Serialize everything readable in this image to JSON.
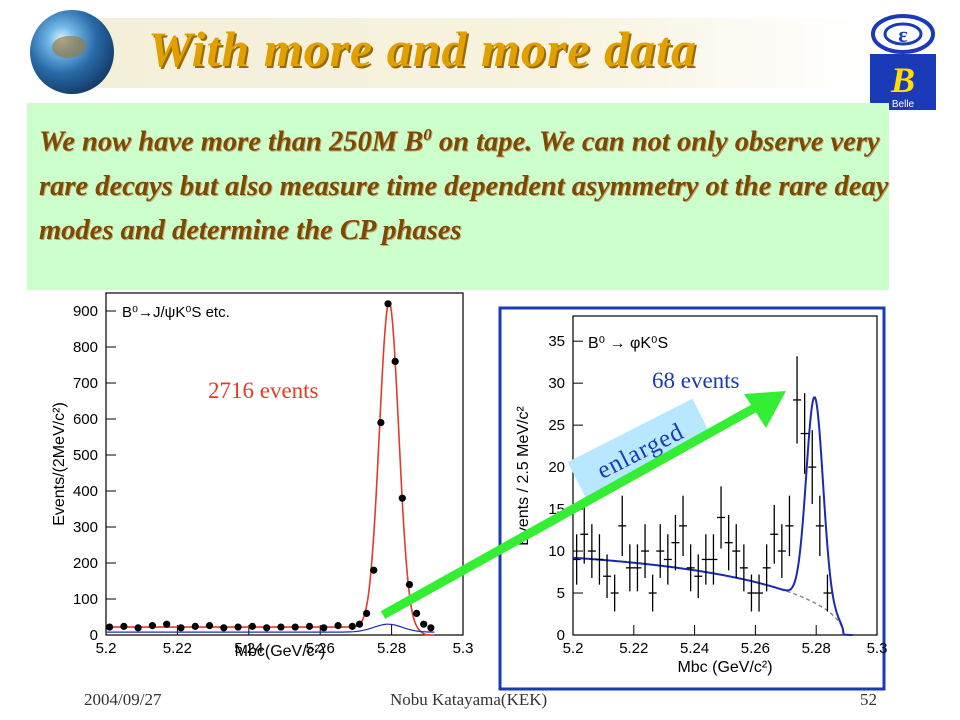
{
  "slide": {
    "title": "With more and more data",
    "body_pre": "We now have more than 250M B",
    "body_sup": "0",
    "body_post": " on tape. We can not only observe very rare decays but also measure time dependent asymmetry ot the rare deay modes and determine the CP phases",
    "logo_text": "Belle",
    "footer_date": "2004/09/27",
    "footer_author": "Nobu Katayama(KEK)",
    "footer_page": "52",
    "annotation_enlarged": "enlarged",
    "colors": {
      "title": "#e0a000",
      "textbox_bg": "#ccffcc",
      "arrow": "#33ee33",
      "left_count": "#e53a2a",
      "right_count": "#1a3ab8"
    }
  },
  "chart_data": [
    {
      "type": "scatter",
      "process_label": "B⁰→J/ψK⁰S etc.",
      "count_label": "2716 events",
      "xlabel": "Mbc(GeV/c²)",
      "ylabel": "Events/(2MeV/c²)",
      "xlim": [
        5.2,
        5.3
      ],
      "ylim": [
        0,
        950
      ],
      "xticks": [
        "5.2",
        "5.22",
        "5.24",
        "5.26",
        "5.28",
        "5.3"
      ],
      "yticks": [
        "0",
        "100",
        "200",
        "300",
        "400",
        "500",
        "600",
        "700",
        "800",
        "900"
      ],
      "points": [
        [
          5.201,
          22
        ],
        [
          5.205,
          24
        ],
        [
          5.209,
          20
        ],
        [
          5.213,
          26
        ],
        [
          5.217,
          30
        ],
        [
          5.221,
          20
        ],
        [
          5.225,
          24
        ],
        [
          5.229,
          26
        ],
        [
          5.233,
          20
        ],
        [
          5.237,
          22
        ],
        [
          5.241,
          24
        ],
        [
          5.245,
          20
        ],
        [
          5.249,
          22
        ],
        [
          5.253,
          22
        ],
        [
          5.257,
          24
        ],
        [
          5.261,
          20
        ],
        [
          5.265,
          26
        ],
        [
          5.269,
          24
        ],
        [
          5.271,
          30
        ],
        [
          5.273,
          60
        ],
        [
          5.275,
          180
        ],
        [
          5.277,
          590
        ],
        [
          5.279,
          920
        ],
        [
          5.281,
          760
        ],
        [
          5.283,
          380
        ],
        [
          5.285,
          140
        ],
        [
          5.287,
          60
        ],
        [
          5.289,
          30
        ],
        [
          5.291,
          20
        ]
      ],
      "fit_color": "#e53a2a",
      "point_color": "#000000"
    },
    {
      "type": "scatter",
      "process_label": "B⁰ → φK⁰S",
      "count_label": "68 events",
      "xlabel": "Mbc (GeV/c²)",
      "ylabel": "Events / 2.5 MeV/c²",
      "xlim": [
        5.2,
        5.3
      ],
      "ylim": [
        0,
        38
      ],
      "xticks": [
        "5.2",
        "5.22",
        "5.24",
        "5.26",
        "5.28",
        "5.3"
      ],
      "yticks": [
        "0",
        "5",
        "10",
        "15",
        "20",
        "25",
        "30",
        "35"
      ],
      "points": [
        [
          5.2012,
          9
        ],
        [
          5.2037,
          12
        ],
        [
          5.2062,
          10
        ],
        [
          5.2087,
          9
        ],
        [
          5.2112,
          7
        ],
        [
          5.2137,
          5
        ],
        [
          5.2162,
          13
        ],
        [
          5.2187,
          8
        ],
        [
          5.2212,
          8
        ],
        [
          5.2237,
          10
        ],
        [
          5.2262,
          5
        ],
        [
          5.2287,
          10
        ],
        [
          5.2312,
          9
        ],
        [
          5.2337,
          11
        ],
        [
          5.2362,
          13
        ],
        [
          5.2387,
          8
        ],
        [
          5.2412,
          7
        ],
        [
          5.2437,
          9
        ],
        [
          5.2462,
          9
        ],
        [
          5.2487,
          14
        ],
        [
          5.2512,
          11
        ],
        [
          5.2537,
          10
        ],
        [
          5.2562,
          8
        ],
        [
          5.2587,
          5
        ],
        [
          5.2612,
          5
        ],
        [
          5.2637,
          8
        ],
        [
          5.2662,
          12
        ],
        [
          5.2687,
          10
        ],
        [
          5.2712,
          13
        ],
        [
          5.2737,
          28
        ],
        [
          5.2762,
          24
        ],
        [
          5.2787,
          20
        ],
        [
          5.2812,
          13
        ],
        [
          5.2837,
          5
        ],
        [
          5.2862,
          0
        ],
        [
          5.2887,
          0
        ]
      ],
      "errors": [
        3,
        3.5,
        3.2,
        3,
        2.6,
        2.2,
        3.6,
        2.8,
        2.8,
        3.2,
        2.2,
        3.2,
        3,
        3.3,
        3.6,
        2.8,
        2.6,
        3,
        3,
        3.7,
        3.3,
        3.2,
        2.8,
        2.2,
        2.2,
        2.8,
        3.5,
        3.2,
        3.6,
        5.2,
        4.8,
        4.4,
        3.6,
        2.2,
        0,
        0
      ],
      "fit_color": "#1a2ab0",
      "bkg_color": "#888888"
    }
  ]
}
